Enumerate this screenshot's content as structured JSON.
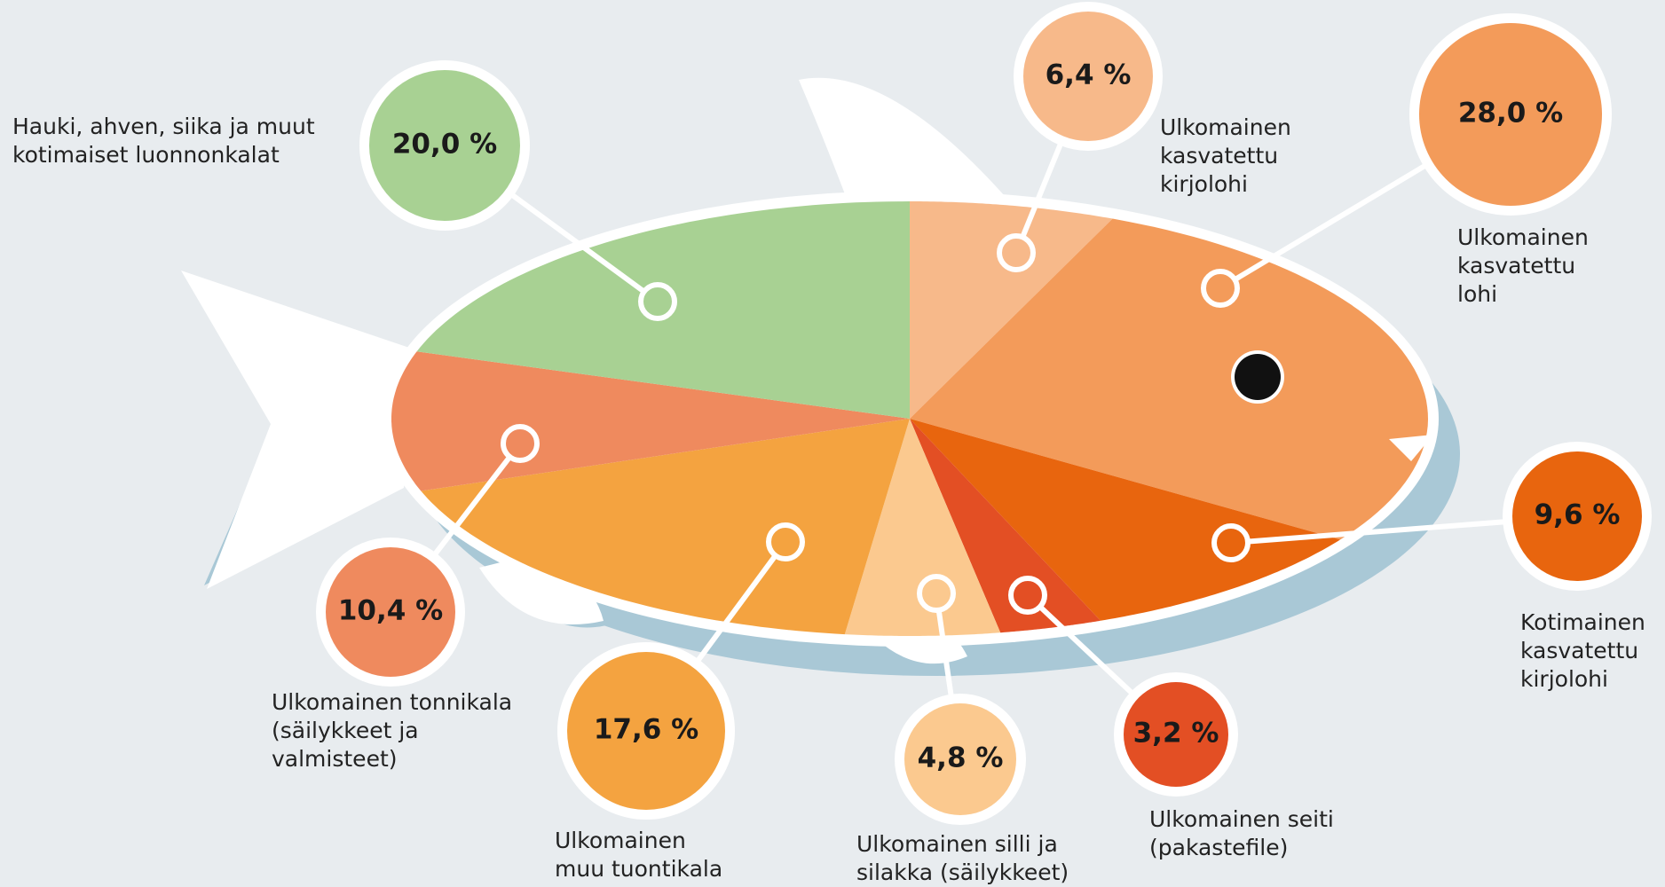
{
  "chart_data": {
    "type": "pie",
    "categories": [
      "Ulkomainen\nkasvatettu\nkirjolohi",
      "Ulkomainen\nkasvatettu\nlohi",
      "Kotimainen\nkasvatettu\nkirjolohi",
      "Ulkomainen seiti\n(pakastefile)",
      "Ulkomainen silli ja\nsilakka (säilykkeet)",
      "Ulkomainen\nmuu tuontikala",
      "Ulkomainen tonnikala\n(säilykkeet ja\nvalmisteet)",
      "Hauki, ahven, siika ja muut\nkotimaiset luonnonkalat"
    ],
    "values": [
      6.4,
      28.0,
      9.6,
      3.2,
      4.8,
      17.6,
      10.4,
      20.0
    ],
    "value_labels": [
      "6,4 %",
      "28,0 %",
      "9,6 %",
      "3,2 %",
      "4,8 %",
      "17,6 %",
      "10,4 %",
      "20,0 %"
    ],
    "colors": [
      "#f7b98a",
      "#f39b5a",
      "#e8650e",
      "#e34f24",
      "#fbc98f",
      "#f4a340",
      "#ef8a5e",
      "#a8d193"
    ]
  }
}
